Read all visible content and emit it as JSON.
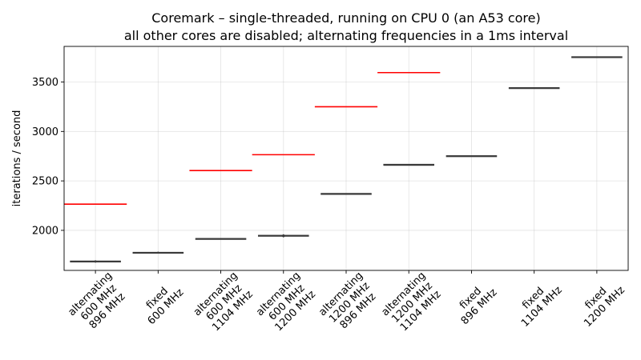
{
  "chart_data": {
    "type": "box",
    "title": "Coremark – single-threaded, running on CPU 0 (an A53 core)",
    "subtitle": "all other cores are disabled; alternating frequencies in a 1ms interval",
    "xlabel": "",
    "ylabel": "iterations / second",
    "ylim": [
      1595,
      3860
    ],
    "yticks": [
      2000,
      2500,
      3000,
      3500
    ],
    "grid": true,
    "categories": [
      [
        "alternating",
        "600 MHz",
        "896 MHz"
      ],
      [
        "fixed",
        "600 MHz"
      ],
      [
        "alternating",
        "600 MHz",
        "1104 MHz"
      ],
      [
        "alternating",
        "600 MHz",
        "1200 MHz"
      ],
      [
        "alternating",
        "1200 MHz",
        "896 MHz"
      ],
      [
        "alternating",
        "1200 MHz",
        "1104 MHz"
      ],
      [
        "fixed",
        "896 MHz"
      ],
      [
        "fixed",
        "1104 MHz"
      ],
      [
        "fixed",
        "1200 MHz"
      ]
    ],
    "measured": [
      {
        "median": 1685,
        "low": 1680,
        "high": 1690,
        "outliers": [
          1672,
          1698
        ]
      },
      {
        "median": 1775,
        "low": 1772,
        "high": 1778,
        "outliers": [
          1765,
          1785
        ]
      },
      {
        "median": 1915,
        "low": 1912,
        "high": 1918,
        "outliers": []
      },
      {
        "median": 1945,
        "low": 1942,
        "high": 1950,
        "outliers": [
          1928,
          1962
        ]
      },
      {
        "median": 2370,
        "low": 2368,
        "high": 2373,
        "outliers": []
      },
      {
        "median": 2660,
        "low": 2658,
        "high": 2668,
        "outliers": []
      },
      {
        "median": 2750,
        "low": 2745,
        "high": 2755,
        "outliers": []
      },
      {
        "median": 3440,
        "low": 3435,
        "high": 3443,
        "outliers": []
      },
      {
        "median": 3750,
        "low": 3748,
        "high": 3756,
        "outliers": []
      }
    ],
    "expected_reference": [
      2265,
      null,
      2605,
      2765,
      3250,
      3595,
      null,
      null,
      null
    ],
    "colors": {
      "box": "#3a3a3a",
      "reference": "#ff0000",
      "grid": "#b0b0b0"
    }
  }
}
